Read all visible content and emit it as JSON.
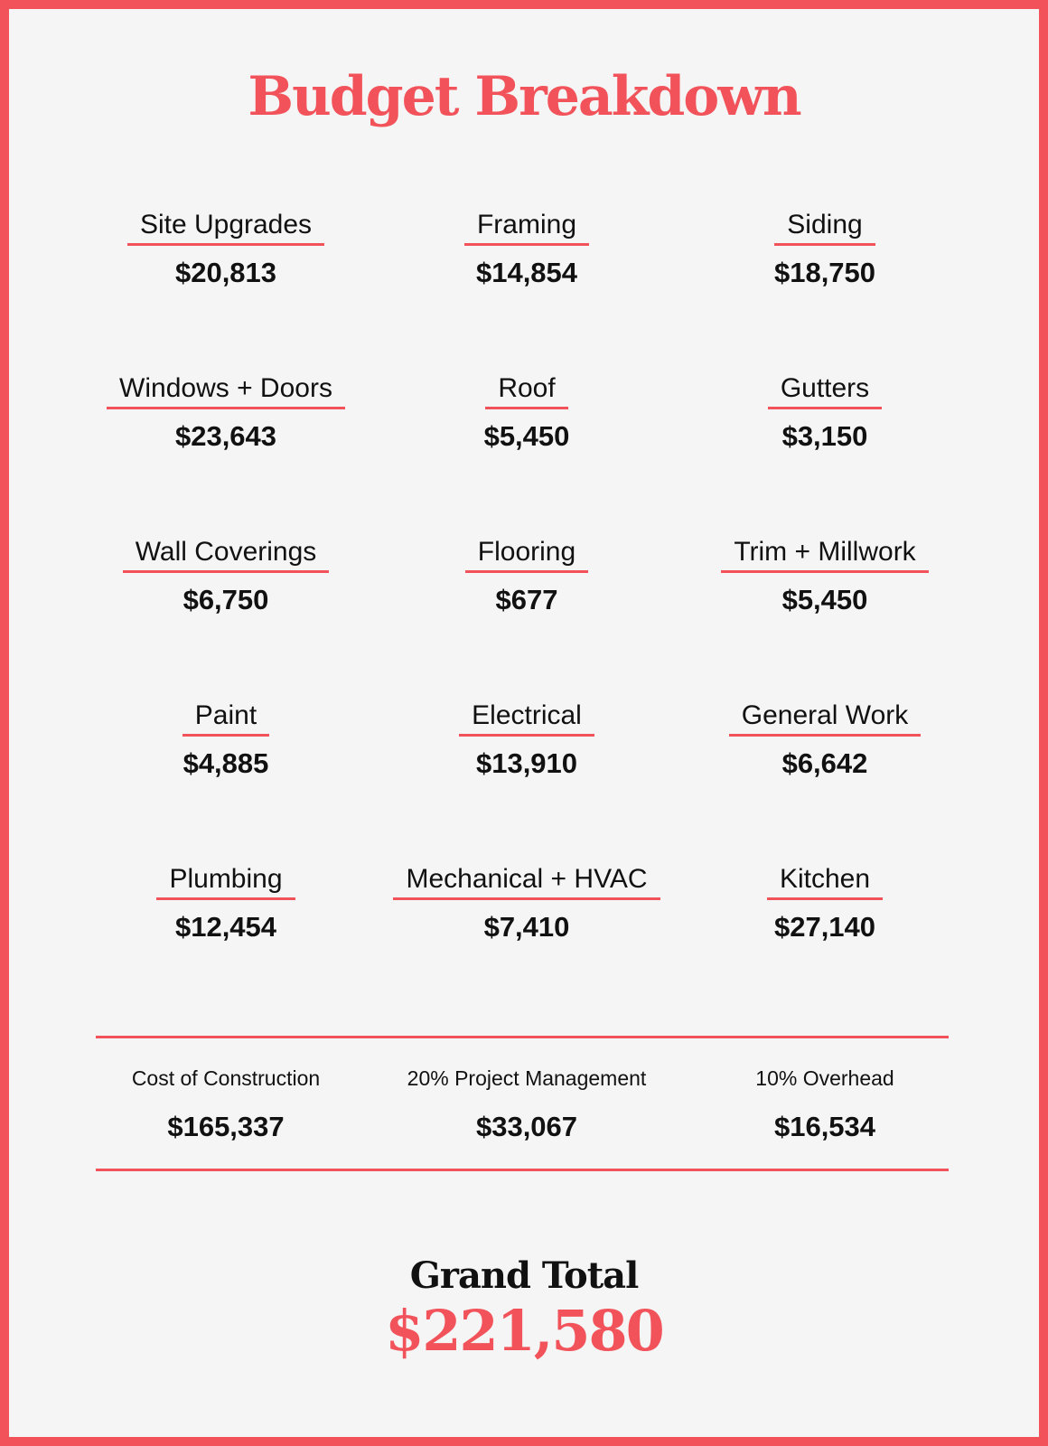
{
  "title": "Budget Breakdown",
  "items": [
    {
      "label": "Site Upgrades",
      "amount": "$20,813"
    },
    {
      "label": "Framing",
      "amount": "$14,854"
    },
    {
      "label": "Siding",
      "amount": "$18,750"
    },
    {
      "label": "Windows + Doors",
      "amount": "$23,643"
    },
    {
      "label": "Roof",
      "amount": "$5,450"
    },
    {
      "label": "Gutters",
      "amount": "$3,150"
    },
    {
      "label": "Wall Coverings",
      "amount": "$6,750"
    },
    {
      "label": "Flooring",
      "amount": "$677"
    },
    {
      "label": "Trim + Millwork",
      "amount": "$5,450"
    },
    {
      "label": "Paint",
      "amount": "$4,885"
    },
    {
      "label": "Electrical",
      "amount": "$13,910"
    },
    {
      "label": "General Work",
      "amount": "$6,642"
    },
    {
      "label": "Plumbing",
      "amount": "$12,454"
    },
    {
      "label": "Mechanical + HVAC",
      "amount": "$7,410"
    },
    {
      "label": "Kitchen",
      "amount": "$27,140"
    }
  ],
  "summary": [
    {
      "label": "Cost of Construction",
      "amount": "$165,337"
    },
    {
      "label": "20% Project Management",
      "amount": "$33,067"
    },
    {
      "label": "10% Overhead",
      "amount": "$16,534"
    }
  ],
  "grand_total": {
    "label": "Grand Total",
    "amount": "$221,580"
  }
}
